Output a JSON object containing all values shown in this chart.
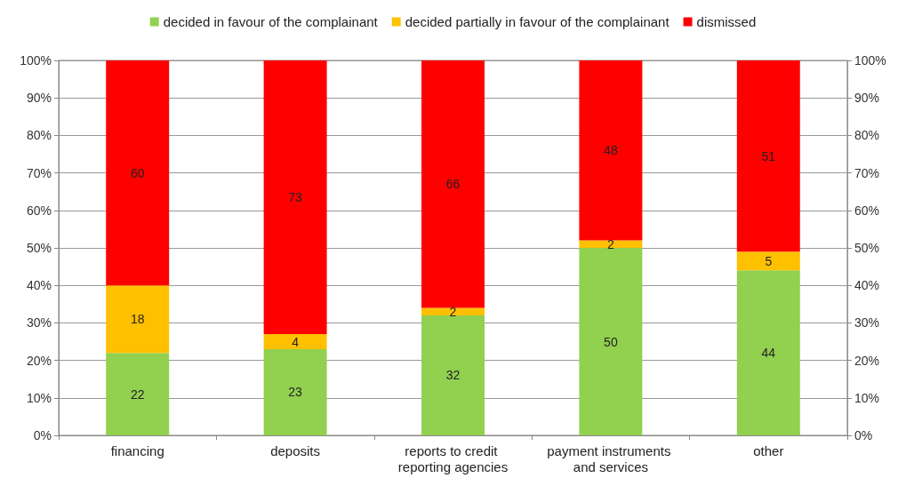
{
  "chart_data": {
    "type": "bar",
    "stacked": true,
    "categories": [
      "financing",
      "deposits",
      "reports to credit reporting agencies",
      "payment instruments and services",
      "other"
    ],
    "series": [
      {
        "name": "decided in favour of the complainant",
        "color": "#92d050",
        "values": [
          22,
          23,
          32,
          50,
          44
        ]
      },
      {
        "name": "decided partially in favour of the complainant",
        "color": "#ffc000",
        "values": [
          18,
          4,
          2,
          2,
          5
        ]
      },
      {
        "name": "dismissed",
        "color": "#ff0000",
        "values": [
          60,
          73,
          66,
          48,
          51
        ]
      }
    ],
    "ylim": [
      0,
      100
    ],
    "yticks": [
      {
        "value": 0,
        "label": "0%"
      },
      {
        "value": 10,
        "label": "10%"
      },
      {
        "value": 20,
        "label": "20%"
      },
      {
        "value": 30,
        "label": "30%"
      },
      {
        "value": 40,
        "label": "40%"
      },
      {
        "value": 50,
        "label": "50%"
      },
      {
        "value": 60,
        "label": "60%"
      },
      {
        "value": 70,
        "label": "70%"
      },
      {
        "value": 80,
        "label": "80%"
      },
      {
        "value": 90,
        "label": "90%"
      },
      {
        "value": 100,
        "label": "100%"
      }
    ],
    "y2lim": [
      0,
      100
    ],
    "y2ticks": [
      {
        "value": 0,
        "label": "0%"
      },
      {
        "value": 10,
        "label": "10%"
      },
      {
        "value": 20,
        "label": "20%"
      },
      {
        "value": 30,
        "label": "30%"
      },
      {
        "value": 40,
        "label": "40%"
      },
      {
        "value": 50,
        "label": "50%"
      },
      {
        "value": 60,
        "label": "60%"
      },
      {
        "value": 70,
        "label": "70%"
      },
      {
        "value": 80,
        "label": "80%"
      },
      {
        "value": 90,
        "label": "90%"
      },
      {
        "value": 100,
        "label": "100%"
      }
    ],
    "grid": "y",
    "legend": "top",
    "data_labels": true
  }
}
